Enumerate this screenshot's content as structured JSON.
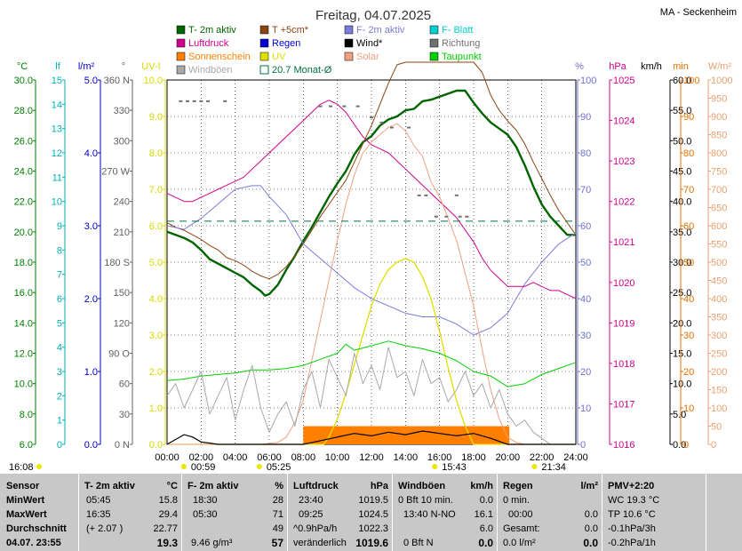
{
  "header": {
    "title": "Freitag, 04.07.2025",
    "station": "MA - Seckenheim"
  },
  "legend": [
    {
      "label": "T- 2m aktiv",
      "color": "#006400"
    },
    {
      "label": "T +5cm*",
      "color": "#8b4513"
    },
    {
      "label": "F- 2m aktiv",
      "color": "#7b7bdc"
    },
    {
      "label": "F- Blatt",
      "color": "#00d0d0"
    },
    {
      "label": "Luftdruck",
      "color": "#d0008c"
    },
    {
      "label": "Regen",
      "color": "#0000d0"
    },
    {
      "label": "Wind*",
      "color": "#000000"
    },
    {
      "label": "Richtung",
      "color": "#707070"
    },
    {
      "label": "Sonnenschein",
      "color": "#ff8000"
    },
    {
      "label": "UV",
      "color": "#e0e000"
    },
    {
      "label": "Solar",
      "color": "#f0a080"
    },
    {
      "label": "Taupunkt",
      "color": "#00d000"
    },
    {
      "label": "Windböen",
      "color": "#a8a8a8"
    },
    {
      "label": "20.7 Monat-Ø",
      "color": "#007040"
    }
  ],
  "chart_data": {
    "type": "line",
    "x_unit": "hour",
    "xlim": [
      0,
      24
    ],
    "x_ticks": [
      "00:00",
      "02:00",
      "04:00",
      "06:00",
      "08:00",
      "10:00",
      "12:00",
      "14:00",
      "16:00",
      "18:00",
      "20:00",
      "22:00",
      "24:00"
    ],
    "axes": {
      "temp": {
        "unit": "°C",
        "color": "#008000",
        "ticks": [
          "30.0",
          "28.0",
          "26.0",
          "24.0",
          "22.0",
          "20.0",
          "18.0",
          "16.0",
          "14.0",
          "12.0",
          "10.0",
          "8.0",
          "6.0"
        ],
        "range": [
          6,
          30
        ]
      },
      "leaf": {
        "unit": "lf",
        "color": "#00b0b0",
        "ticks": [
          "15",
          "14",
          "13",
          "12",
          "11",
          "10",
          "9",
          "8",
          "7",
          "6",
          "5",
          "4",
          "3",
          "2",
          "1",
          "0"
        ],
        "range": [
          0,
          15
        ]
      },
      "rain": {
        "unit": "l/m²",
        "color": "#0000c0",
        "ticks": [
          "5.0",
          "4.0",
          "3.0",
          "2.0",
          "1.0",
          "0.0"
        ],
        "range": [
          0,
          5
        ]
      },
      "dir": {
        "unit": "°",
        "color": "#606060",
        "ticks": [
          "360 N",
          "330",
          "300",
          "270 W",
          "240",
          "210",
          "180 S",
          "150",
          "120",
          "90 O",
          "60",
          "30",
          "0 N"
        ],
        "range": [
          0,
          360
        ]
      },
      "uv": {
        "unit": "UV-I",
        "color": "#d8d800",
        "ticks": [
          "10.0",
          "9.0",
          "8.0",
          "7.0",
          "6.0",
          "5.0",
          "4.0",
          "3.0",
          "2.0",
          "1.0",
          "0.0"
        ],
        "range": [
          0,
          10
        ]
      },
      "hum": {
        "unit": "%",
        "color": "#7070d0",
        "ticks": [
          "100",
          "90",
          "80",
          "70",
          "60",
          "50",
          "40",
          "30",
          "20",
          "10",
          "0"
        ],
        "range": [
          0,
          100
        ]
      },
      "press": {
        "unit": "hPa",
        "color": "#d0008c",
        "ticks": [
          "1025",
          "1024",
          "1023",
          "1022",
          "1021",
          "1020",
          "1019",
          "1018",
          "1017",
          "1016"
        ],
        "range": [
          1016,
          1025
        ]
      },
      "wind": {
        "unit": "km/h",
        "color": "#000000",
        "ticks": [
          "60.0",
          "55.0",
          "50.0",
          "45.0",
          "40.0",
          "35.0",
          "30.0",
          "25.0",
          "20.0",
          "15.0",
          "10.0",
          "5.0",
          "0.0"
        ],
        "range": [
          0,
          60
        ]
      },
      "sunmin": {
        "unit": "min",
        "color": "#e07000",
        "ticks": [
          "100",
          "90",
          "80",
          "70",
          "60",
          "50",
          "40",
          "30",
          "20",
          "10",
          "0"
        ],
        "range": [
          0,
          100
        ]
      },
      "solar": {
        "unit": "W/m²",
        "color": "#e8a070",
        "ticks": [
          "1000",
          "950",
          "900",
          "850",
          "800",
          "750",
          "700",
          "650",
          "600",
          "550",
          "500",
          "450",
          "400",
          "350",
          "300",
          "250",
          "200",
          "150",
          "100",
          "50",
          "0"
        ],
        "range": [
          0,
          1000
        ]
      }
    },
    "series": [
      {
        "name": "T- 2m aktiv",
        "axis": "temp",
        "color": "#006400",
        "width": 2.4,
        "x": [
          0,
          0.5,
          1,
          1.5,
          2,
          2.5,
          3,
          3.5,
          4,
          4.5,
          5,
          5.5,
          5.75,
          6,
          6.5,
          7,
          7.5,
          8,
          8.5,
          9,
          9.5,
          10,
          10.5,
          11,
          11.5,
          12,
          12.5,
          13,
          13.5,
          14,
          14.5,
          15,
          15.5,
          16,
          16.5,
          17,
          17.5,
          18,
          18.5,
          19,
          19.5,
          20,
          20.5,
          21,
          21.5,
          22,
          22.5,
          23,
          23.5,
          24
        ],
        "y": [
          20.0,
          19.8,
          19.6,
          19.3,
          18.8,
          18.2,
          17.9,
          17.6,
          17.3,
          17.0,
          16.5,
          16.1,
          15.8,
          15.9,
          16.5,
          17.5,
          18.4,
          19.4,
          20.3,
          21.3,
          22.3,
          23.2,
          24.0,
          25.1,
          25.9,
          26.3,
          27.0,
          27.4,
          27.6,
          28.0,
          28.1,
          28.6,
          28.7,
          28.9,
          29.1,
          29.3,
          29.3,
          28.5,
          27.8,
          27.2,
          26.8,
          26.4,
          25.6,
          24.4,
          23.0,
          21.8,
          21.0,
          20.4,
          19.8,
          19.8
        ]
      },
      {
        "name": "T +5cm*",
        "axis": "temp",
        "color": "#8b4513",
        "width": 1,
        "x": [
          0,
          0.5,
          1,
          1.5,
          2,
          2.5,
          3,
          3.5,
          4,
          4.5,
          5,
          5.5,
          6,
          6.5,
          7,
          7.5,
          8,
          8.5,
          9,
          9.5,
          10,
          10.5,
          11,
          11.5,
          12,
          12.5,
          13,
          13.5,
          14,
          18,
          18.5,
          19,
          19.5,
          20,
          20.5,
          21,
          21.5,
          22,
          22.5,
          23,
          23.5,
          24
        ],
        "y": [
          20.6,
          20.3,
          20.1,
          19.8,
          19.5,
          19.1,
          18.8,
          18.3,
          18.1,
          17.8,
          17.4,
          17.1,
          16.9,
          17.2,
          17.7,
          18.4,
          19.2,
          20.1,
          21.0,
          21.8,
          22.6,
          23.4,
          24.6,
          25.8,
          27.0,
          28.4,
          29.8,
          31,
          33,
          33,
          30.5,
          29.0,
          28.0,
          27.3,
          26.7,
          25.8,
          24.6,
          23.5,
          22.4,
          21.4,
          20.6,
          19.8
        ]
      },
      {
        "name": "F- 2m aktiv",
        "axis": "hum",
        "color": "#7b7bdc",
        "width": 1,
        "x": [
          0,
          1,
          2,
          3,
          4,
          5,
          5.5,
          6,
          7,
          8,
          9,
          10,
          11,
          12,
          13,
          14,
          15,
          16,
          17,
          18,
          19,
          20,
          21,
          22,
          23,
          24
        ],
        "y": [
          60,
          59,
          62,
          66,
          70,
          71,
          71,
          68,
          63,
          55,
          51,
          47,
          43,
          40,
          38,
          36,
          35,
          35,
          33,
          30,
          32,
          36,
          44,
          50,
          55,
          58
        ]
      },
      {
        "name": "Luftdruck",
        "axis": "press",
        "color": "#d0008c",
        "width": 1,
        "x": [
          0,
          0.5,
          1,
          1.5,
          2,
          2.5,
          3,
          3.5,
          4,
          4.5,
          5,
          5.5,
          6,
          6.5,
          7,
          7.5,
          8,
          8.5,
          9,
          9.5,
          10,
          10.5,
          11,
          11.5,
          12,
          12.5,
          13,
          13.5,
          14,
          14.5,
          15,
          15.5,
          16,
          16.5,
          17,
          17.5,
          18,
          18.5,
          19,
          19.5,
          20,
          20.5,
          21,
          21.5,
          22,
          22.5,
          23,
          23.5,
          24
        ],
        "y": [
          1022.2,
          1022.1,
          1022.0,
          1022.0,
          1022.1,
          1022.2,
          1022.3,
          1022.4,
          1022.5,
          1022.6,
          1022.8,
          1023.0,
          1023.2,
          1023.4,
          1023.6,
          1023.8,
          1024.0,
          1024.2,
          1024.4,
          1024.5,
          1024.4,
          1024.2,
          1023.9,
          1023.6,
          1023.4,
          1023.3,
          1023.2,
          1023.0,
          1022.8,
          1022.6,
          1022.4,
          1022.2,
          1022.0,
          1021.8,
          1021.6,
          1021.3,
          1021.0,
          1020.6,
          1020.3,
          1020.1,
          1019.9,
          1019.9,
          1019.9,
          1020.0,
          1019.9,
          1019.8,
          1019.8,
          1019.7,
          1019.6
        ]
      },
      {
        "name": "UV",
        "axis": "uv",
        "color": "#e0e000",
        "width": 1.3,
        "x": [
          0,
          9.2,
          9.5,
          10,
          10.5,
          11,
          11.5,
          12,
          12.5,
          13,
          13.5,
          14,
          14.5,
          15,
          15.5,
          16,
          16.5,
          17,
          17.5,
          18,
          24
        ],
        "y": [
          0,
          0,
          0.2,
          0.7,
          1.4,
          2.2,
          3.0,
          3.8,
          4.4,
          4.8,
          5.0,
          5.1,
          5.0,
          4.6,
          4.0,
          3.1,
          2.1,
          1.2,
          0.5,
          0,
          0
        ]
      },
      {
        "name": "Solar",
        "axis": "solar",
        "color": "#f0a080",
        "width": 1,
        "x": [
          0,
          5.5,
          6.5,
          7,
          7.5,
          8,
          8.5,
          9,
          9.5,
          10,
          10.5,
          11,
          11.5,
          12,
          12.5,
          13,
          13.5,
          14,
          14.5,
          15,
          15.5,
          16,
          16.5,
          17,
          17.5,
          18,
          18.5,
          19,
          19.5,
          20,
          20.5,
          21,
          24
        ],
        "y": [
          0,
          0,
          5,
          20,
          60,
          120,
          230,
          340,
          450,
          560,
          660,
          740,
          800,
          830,
          850,
          870,
          880,
          860,
          820,
          790,
          720,
          680,
          620,
          560,
          470,
          380,
          260,
          150,
          70,
          20,
          5,
          0,
          0
        ]
      },
      {
        "name": "Taupunkt",
        "axis": "temp",
        "color": "#00d000",
        "width": 1,
        "x": [
          0,
          1,
          2,
          3,
          4,
          5,
          6,
          7,
          8,
          9,
          10,
          10.5,
          11,
          12,
          13,
          14,
          15,
          16,
          17,
          18,
          19,
          20,
          21,
          22,
          23,
          24
        ],
        "y": [
          10.2,
          10.3,
          10.5,
          10.6,
          10.7,
          10.9,
          10.9,
          11.0,
          11.2,
          11.6,
          12.0,
          12.6,
          12.2,
          12.5,
          12.8,
          12.5,
          12.3,
          12.0,
          11.5,
          10.8,
          10.5,
          9.8,
          10.0,
          10.6,
          11.0,
          11.4
        ]
      },
      {
        "name": "20.7 Monat-Ø",
        "axis": "temp",
        "color": "#007040",
        "width": 1,
        "dash": "8,6",
        "x": [
          0,
          24
        ],
        "y": [
          20.7,
          20.7
        ]
      },
      {
        "name": "Windböen",
        "axis": "wind",
        "color": "#a8a8a8",
        "width": 1,
        "x": [
          0,
          0.5,
          1,
          1.5,
          2,
          2.5,
          3,
          3.5,
          4,
          4.5,
          5,
          5.5,
          6,
          6.5,
          7,
          7.5,
          8,
          8.5,
          9,
          9.5,
          10,
          10.5,
          11,
          11.5,
          12,
          12.5,
          13,
          13.5,
          14,
          14.5,
          15,
          15.5,
          16,
          16.5,
          17,
          17.5,
          18,
          18.5,
          19,
          19.5,
          20,
          20.5,
          21,
          21.5,
          22,
          22.5,
          23,
          23.5,
          24
        ],
        "y": [
          8,
          10,
          6,
          9,
          12,
          5,
          8,
          11,
          4,
          9,
          13,
          6,
          2,
          5,
          7,
          3,
          9,
          12,
          6,
          14,
          11,
          8,
          15,
          10,
          13,
          9,
          16,
          11,
          12,
          8,
          14,
          10,
          11,
          7,
          9,
          12,
          8,
          10,
          6,
          9,
          5,
          3,
          4,
          2,
          1,
          0,
          0,
          0,
          0
        ]
      }
    ],
    "dir_points": {
      "axis": "dir",
      "color": "#707070",
      "x": [
        0.8,
        1.2,
        1.6,
        2.0,
        2.4,
        3.4,
        9.0,
        9.6,
        10.4,
        11.2,
        12.0,
        12.6,
        13.2,
        14.2,
        14.8,
        15.2,
        15.8,
        16.4,
        17.0,
        17.2,
        17.6
      ],
      "y": [
        339,
        339,
        339,
        339,
        339,
        339,
        334,
        334,
        334,
        334,
        323,
        318,
        313,
        313,
        246,
        246,
        225,
        225,
        246,
        225,
        225
      ]
    },
    "sunshine": {
      "axis": "sunmin",
      "color": "#ff8000",
      "start": 8.0,
      "end": 20.1,
      "value": 5
    },
    "wind_avg": {
      "axis": "wind",
      "color": "#000000",
      "x": [
        0,
        0.5,
        1,
        1.5,
        2,
        2.5,
        3,
        8,
        9,
        10,
        11,
        12,
        13,
        14,
        15,
        16,
        17,
        18,
        19,
        19.6,
        20,
        24
      ],
      "y": [
        0,
        0.8,
        1.6,
        1.2,
        0.4,
        0.2,
        0,
        0,
        0.6,
        1.2,
        1.8,
        1.4,
        2.0,
        1.6,
        2.2,
        1.8,
        1.4,
        1.8,
        1.0,
        0.4,
        0,
        0
      ]
    }
  },
  "markers": {
    "sunrise": "05:25",
    "sunset": "21:34",
    "moonset": "00:59",
    "moonrise": "15:43",
    "time_left": "16:08"
  },
  "footer": {
    "sensor": {
      "rows": [
        "Sensor",
        "MinWert",
        "MaxWert",
        "Durchschnitt",
        "04.07. 23:55"
      ]
    },
    "temp": {
      "title": "T- 2m aktiv",
      "unit": "°C",
      "rows": [
        [
          "05:45",
          "15.8"
        ],
        [
          "16:35",
          "29.4"
        ],
        [
          "(+ 2.07 )",
          "22.77"
        ],
        [
          "",
          "19.3"
        ]
      ]
    },
    "hum": {
      "title": "F- 2m aktiv",
      "unit": "%",
      "rows": [
        [
          "18:30",
          "28"
        ],
        [
          "05:30",
          "71"
        ],
        [
          "",
          "49"
        ],
        [
          "9.46 g/m³",
          "57"
        ]
      ]
    },
    "press": {
      "title": "Luftdruck",
      "unit": "hPa",
      "rows": [
        [
          "23:40",
          "1019.5"
        ],
        [
          "09:25",
          "1024.5"
        ],
        [
          "^0.9hPa/h",
          "1022.3"
        ],
        [
          "veränderlich",
          "1019.6"
        ]
      ]
    },
    "wind": {
      "title": "Windböen",
      "unit": "km/h",
      "rows": [
        [
          "0 Bft 10 min.",
          "0.0"
        ],
        [
          "13:40  N-NO",
          "16.1"
        ],
        [
          "",
          "6.0"
        ],
        [
          "0 Bft N",
          "0.0"
        ]
      ]
    },
    "rain": {
      "title": "Regen",
      "unit": "l/m²",
      "rows": [
        [
          "0 min.",
          ""
        ],
        [
          "00:00",
          "0.0"
        ],
        [
          "Gesamt:",
          "0.0"
        ],
        [
          "0.0 l/m²",
          "0.0"
        ]
      ]
    },
    "pmv": {
      "title": "PMV+2:20",
      "rows": [
        "WC 19.3 °C",
        "TP 10.6 °C",
        "-0.1hPa/3h",
        "-0.2hPa/1h"
      ]
    }
  }
}
